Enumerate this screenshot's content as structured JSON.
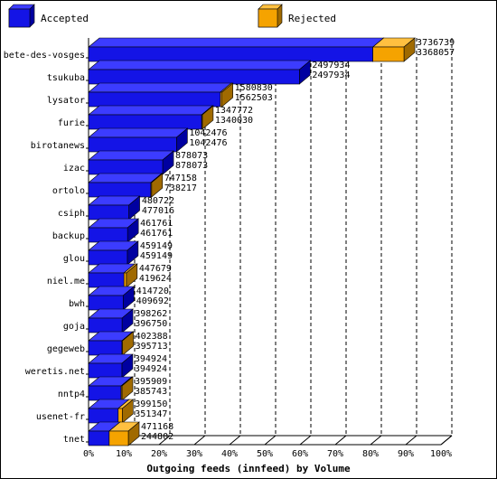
{
  "chart_data": {
    "type": "bar",
    "orientation": "horizontal",
    "stacked": true,
    "three_d": true,
    "title": "",
    "xlabel": "Outgoing feeds (innfeed) by Volume",
    "ylabel": "",
    "xlim": [
      0,
      100
    ],
    "x_tick_labels": [
      "0%",
      "10%",
      "20%",
      "30%",
      "40%",
      "50%",
      "60%",
      "70%",
      "80%",
      "90%",
      "100%"
    ],
    "legend_placement": "top",
    "legend": [
      {
        "name": "Accepted",
        "color": "#1414e6"
      },
      {
        "name": "Rejected",
        "color": "#f5a300"
      }
    ],
    "categories": [
      "bete-des-vosges",
      "tsukuba",
      "lysator",
      "furie",
      "birotanews",
      "izac",
      "ortolo",
      "csiph",
      "backup",
      "glou",
      "niel.me",
      "bwh",
      "goja",
      "gegeweb",
      "weretis.net",
      "nntp4",
      "usenet-fr",
      "tnet"
    ],
    "totals": [
      3736739,
      2497934,
      1580830,
      1347772,
      1042476,
      878073,
      747158,
      480722,
      461761,
      459149,
      447679,
      414720,
      398262,
      402388,
      394924,
      395909,
      399150,
      471168
    ],
    "accepted": [
      3368057,
      2497934,
      1562503,
      1340030,
      1042476,
      878073,
      738217,
      477016,
      461761,
      459149,
      419624,
      409692,
      396750,
      395713,
      394924,
      385743,
      351347,
      244802
    ],
    "total_labels": [
      "3736739",
      "2497934",
      "1580830",
      "1347772",
      "1042476",
      "878073",
      "747158",
      "480722",
      "461761",
      "459149",
      "447679",
      "414720",
      "398262",
      "402388",
      "394924",
      "395909",
      "399150",
      "471168"
    ],
    "accepted_labels": [
      "3368057",
      "2497934",
      "1562503",
      "1340030",
      "1042476",
      "878073",
      "738217",
      "477016",
      "461761",
      "459149",
      "419624",
      "409692",
      "396750",
      "395713",
      "394924",
      "385743",
      "351347",
      "244802"
    ]
  }
}
